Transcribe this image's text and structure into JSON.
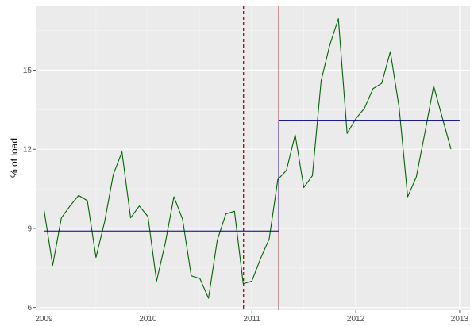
{
  "chart_data": {
    "type": "line",
    "title": "",
    "xlabel": "",
    "ylabel": "% of load",
    "xlim": [
      2008.92,
      2013.1
    ],
    "ylim": [
      5.9,
      17.45
    ],
    "grid": true,
    "x_ticks": [
      {
        "value": 2009,
        "label": "2009"
      },
      {
        "value": 2010,
        "label": "2010"
      },
      {
        "value": 2011,
        "label": "2011"
      },
      {
        "value": 2012,
        "label": "2012"
      },
      {
        "value": 2013,
        "label": "2013"
      }
    ],
    "y_ticks": [
      {
        "value": 6,
        "label": "6"
      },
      {
        "value": 9,
        "label": "9"
      },
      {
        "value": 12,
        "label": "12"
      },
      {
        "value": 15,
        "label": "15"
      }
    ],
    "series": [
      {
        "kind": "observed",
        "color": "#006400",
        "x": [
          2009.0,
          2009.083,
          2009.167,
          2009.25,
          2009.333,
          2009.417,
          2009.5,
          2009.583,
          2009.667,
          2009.75,
          2009.833,
          2009.917,
          2010.0,
          2010.083,
          2010.167,
          2010.25,
          2010.333,
          2010.417,
          2010.5,
          2010.583,
          2010.667,
          2010.75,
          2010.833,
          2010.917,
          2011.0,
          2011.083,
          2011.167,
          2011.25,
          2011.333,
          2011.417,
          2011.5,
          2011.583,
          2011.667,
          2011.75,
          2011.833,
          2011.917,
          2012.0,
          2012.083,
          2012.167,
          2012.25,
          2012.333,
          2012.417,
          2012.5,
          2012.583,
          2012.667,
          2012.75,
          2012.833,
          2012.917
        ],
        "y": [
          9.7,
          7.6,
          9.4,
          9.85,
          10.25,
          10.05,
          7.9,
          9.25,
          11.05,
          11.9,
          9.4,
          9.85,
          9.45,
          7.0,
          8.45,
          10.2,
          9.35,
          7.2,
          7.1,
          6.35,
          8.55,
          9.55,
          9.65,
          6.9,
          7.0,
          7.85,
          8.6,
          10.85,
          11.2,
          12.55,
          10.55,
          11.0,
          14.6,
          15.95,
          16.95,
          12.6,
          13.15,
          13.55,
          14.3,
          14.5,
          15.7,
          13.6,
          10.2,
          10.95,
          12.65,
          14.4,
          13.2,
          12.0
        ]
      },
      {
        "kind": "step",
        "color": "#00008B",
        "x": [
          2009.0,
          2011.26,
          2011.26,
          2013.0
        ],
        "y": [
          8.9,
          8.9,
          13.1,
          13.1
        ]
      }
    ],
    "vlines": [
      {
        "x": 2010.92,
        "color": "#8B0000",
        "style": "dashed"
      },
      {
        "x": 2011.26,
        "color": "#8B0000",
        "style": "solid"
      }
    ]
  }
}
